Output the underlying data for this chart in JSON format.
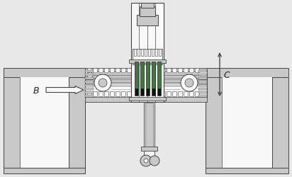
{
  "bg_color": "#e8e8e8",
  "line_color": "#444444",
  "dark_color": "#222222",
  "green_color": "#3a7a3a",
  "light_gray": "#c8c8c8",
  "mid_gray": "#888888",
  "white": "#f8f8f8",
  "label_B": "B",
  "label_C": "C",
  "figsize": [
    4.12,
    2.51
  ],
  "dpi": 100
}
